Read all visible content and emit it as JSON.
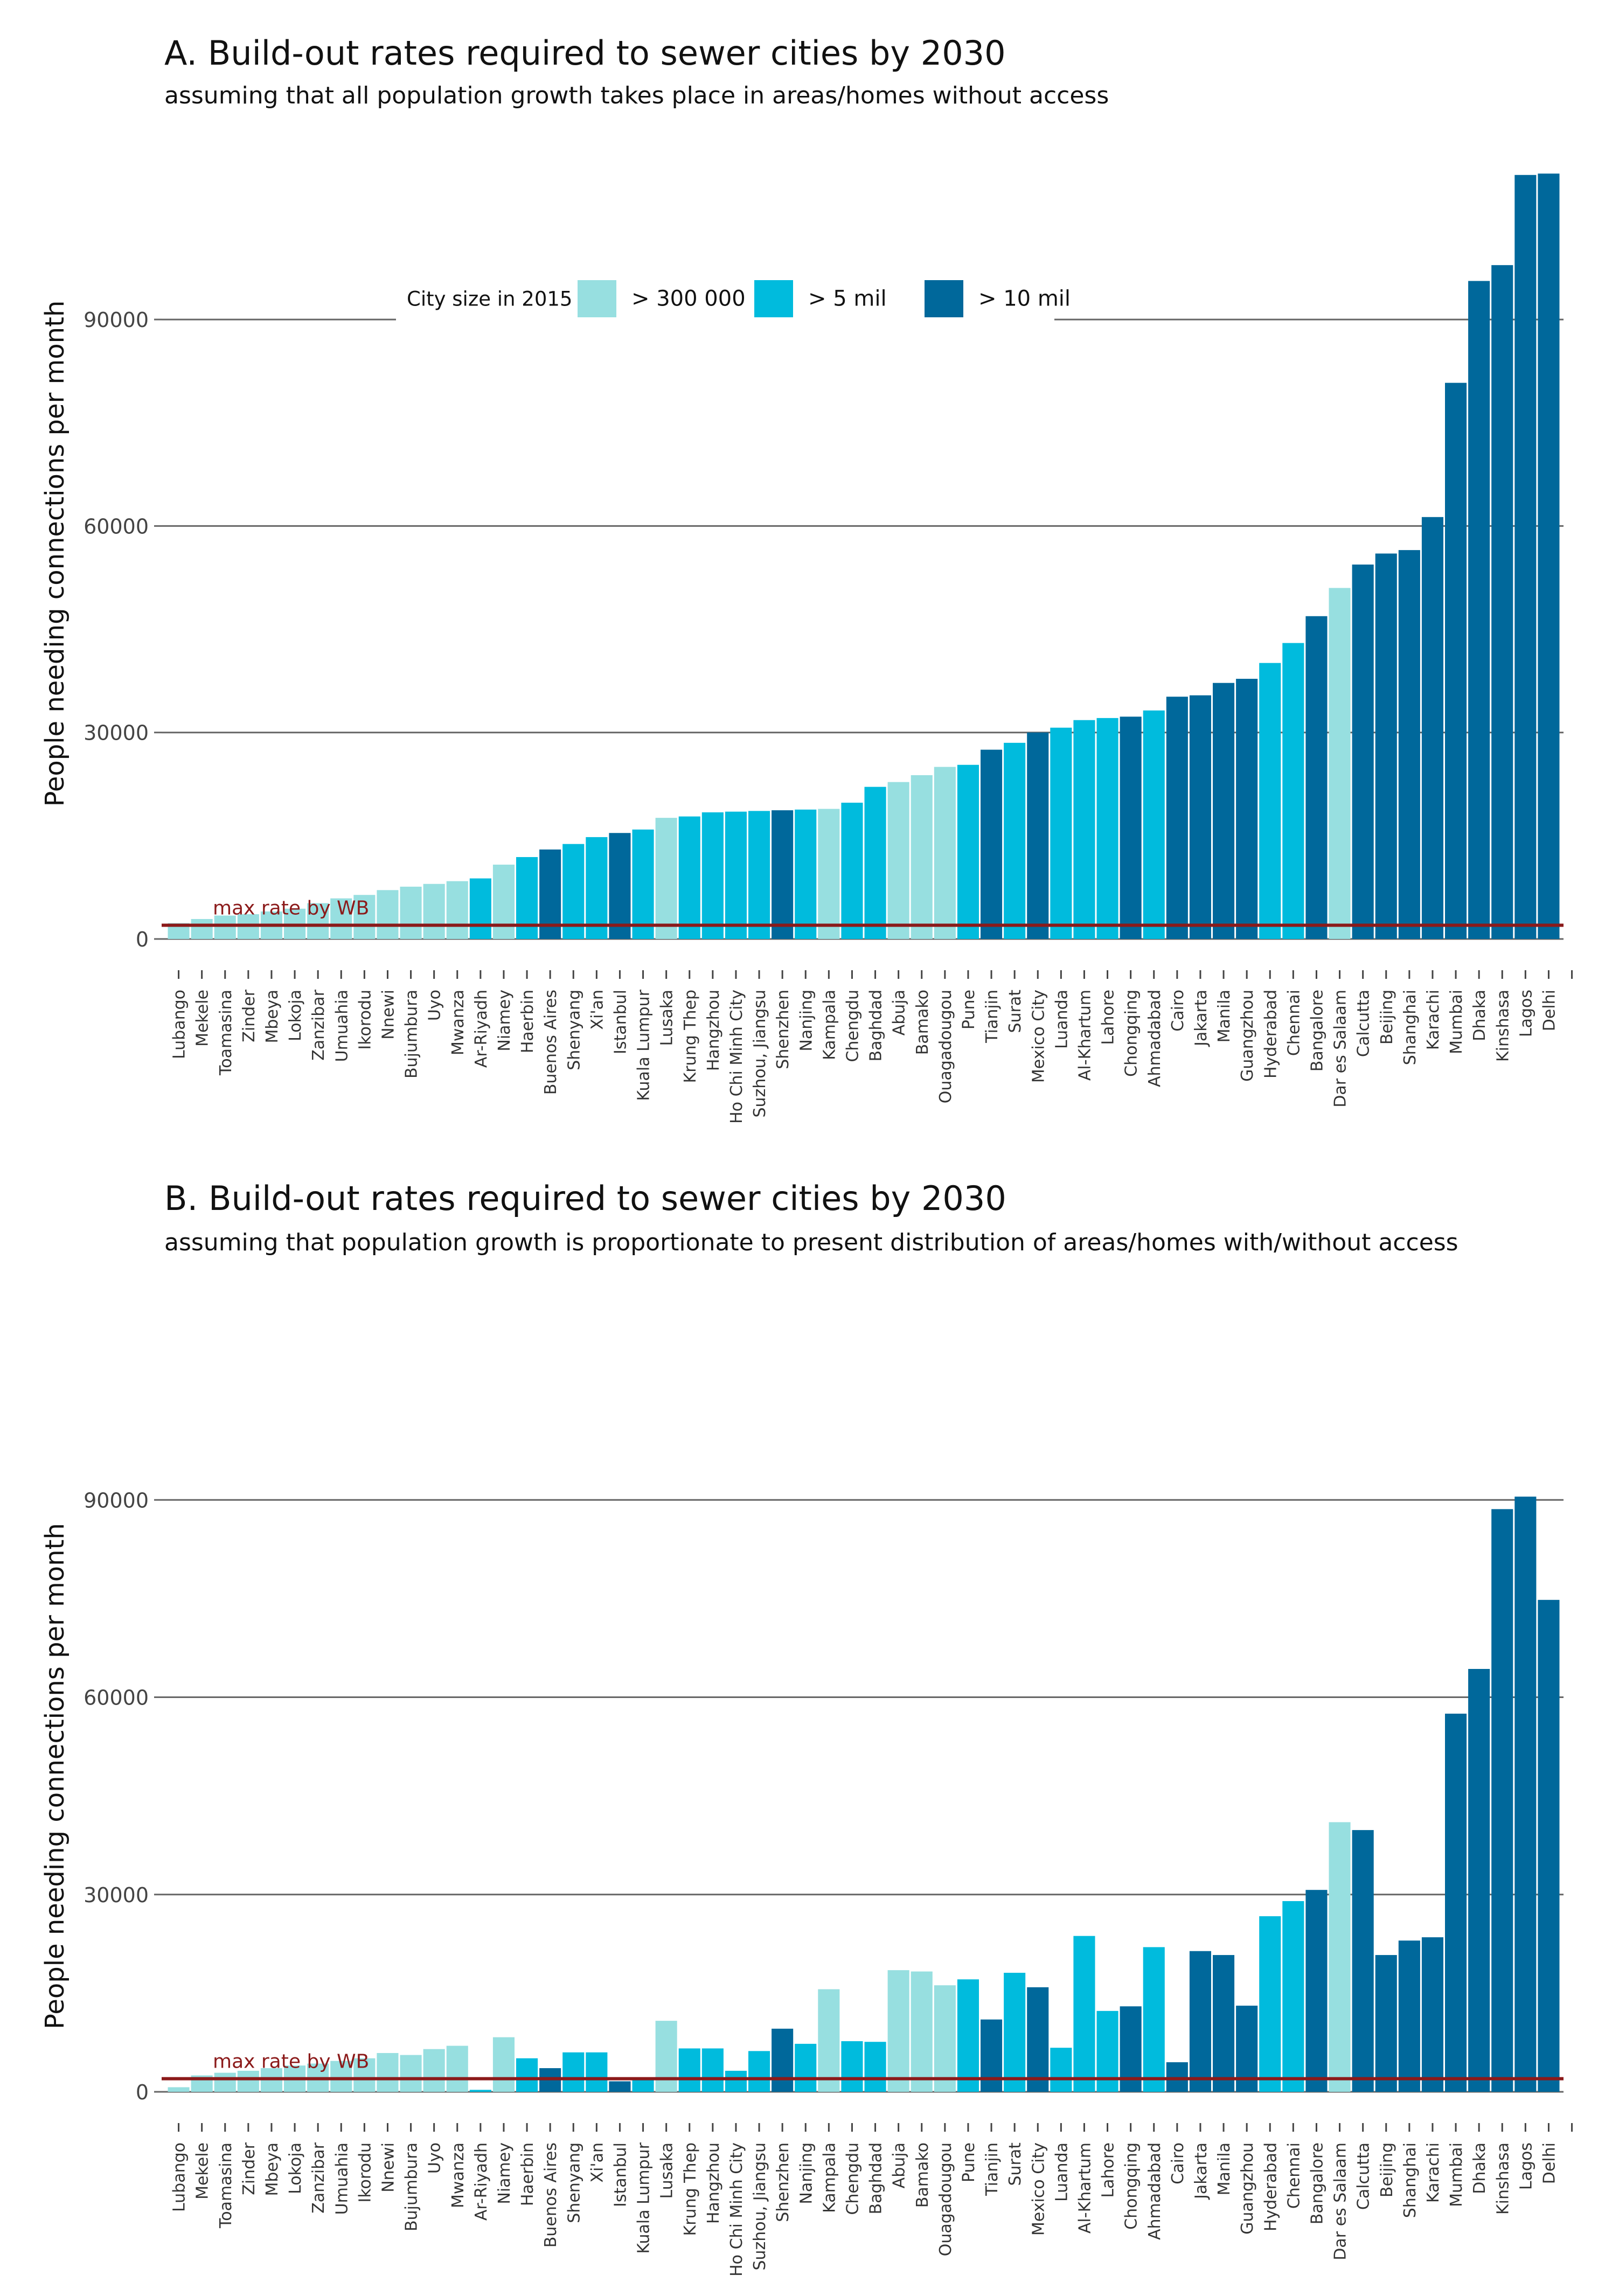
{
  "colors": {
    "size_300k": "#97dfe0",
    "size_5mil": "#00bbdd",
    "size_10mil": "#00689b",
    "wb_line": "#8b1a1a",
    "grid": "#666666"
  },
  "chart_data": [
    {
      "type": "bar",
      "title": "A. Build-out rates required to sewer cities by 2030",
      "subtitle": "assuming that all population growth takes place in areas/homes without access",
      "xlabel": "",
      "ylabel": "People needing connections per month",
      "ylim": [
        0,
        112000
      ],
      "yticks": [
        0,
        30000,
        60000,
        90000
      ],
      "grid": true,
      "legend": {
        "title": "City size in 2015",
        "entries": [
          "> 300 000",
          "> 5 mil",
          "> 10 mil"
        ],
        "placement": "top-center"
      },
      "reference_line": {
        "label": "max rate by WB",
        "value": 2000
      },
      "categories": [
        "Lubango",
        "Mekele",
        "Toamasina",
        "Zinder",
        "Mbeya",
        "Lokoja",
        "Zanzibar",
        "Umuahia",
        "Ikorodu",
        "Nnewi",
        "Bujumbura",
        "Uyo",
        "Mwanza",
        "Ar-Riyadh",
        "Niamey",
        "Haerbin",
        "Buenos Aires",
        "Shenyang",
        "Xi'an",
        "Istanbul",
        "Kuala Lumpur",
        "Lusaka",
        "Krung Thep",
        "Hangzhou",
        "Ho Chi Minh City",
        "Suzhou, Jiangsu",
        "Shenzhen",
        "Nanjing",
        "Kampala",
        "Chengdu",
        "Baghdad",
        "Abuja",
        "Bamako",
        "Ouagadougou",
        "Pune",
        "Tianjin",
        "Surat",
        "Mexico City",
        "Luanda",
        "Al-Khartum",
        "Lahore",
        "Chongqing",
        "Ahmadabad",
        "Cairo",
        "Jakarta",
        "Manila",
        "Guangzhou",
        "Hyderabad",
        "Chennai",
        "Bangalore",
        "Dar es Salaam",
        "Calcutta",
        "Beijing",
        "Shanghai",
        "Karachi",
        "Mumbai",
        "Dhaka",
        "Kinshasa",
        "Lagos",
        "Delhi"
      ],
      "city_size": [
        "> 300 000",
        "> 300 000",
        "> 300 000",
        "> 300 000",
        "> 300 000",
        "> 300 000",
        "> 300 000",
        "> 300 000",
        "> 300 000",
        "> 300 000",
        "> 300 000",
        "> 300 000",
        "> 300 000",
        "> 5 mil",
        "> 300 000",
        "> 5 mil",
        "> 10 mil",
        "> 5 mil",
        "> 5 mil",
        "> 10 mil",
        "> 5 mil",
        "> 300 000",
        "> 5 mil",
        "> 5 mil",
        "> 5 mil",
        "> 5 mil",
        "> 10 mil",
        "> 5 mil",
        "> 300 000",
        "> 5 mil",
        "> 5 mil",
        "> 300 000",
        "> 300 000",
        "> 300 000",
        "> 5 mil",
        "> 10 mil",
        "> 5 mil",
        "> 10 mil",
        "> 5 mil",
        "> 5 mil",
        "> 5 mil",
        "> 10 mil",
        "> 5 mil",
        "> 10 mil",
        "> 10 mil",
        "> 10 mil",
        "> 10 mil",
        "> 5 mil",
        "> 5 mil",
        "> 10 mil",
        "> 300 000",
        "> 10 mil",
        "> 10 mil",
        "> 10 mil",
        "> 10 mil",
        "> 10 mil",
        "> 10 mil",
        "> 10 mil",
        "> 10 mil",
        "> 10 mil"
      ],
      "values": [
        2300,
        2900,
        3400,
        3600,
        4000,
        4400,
        5200,
        5900,
        6400,
        7100,
        7600,
        8000,
        8400,
        8800,
        10800,
        11900,
        13000,
        13800,
        14800,
        15400,
        15900,
        17600,
        17800,
        18400,
        18500,
        18600,
        18700,
        18800,
        18900,
        19800,
        22100,
        22800,
        23800,
        25000,
        25300,
        27500,
        28500,
        30000,
        30700,
        31800,
        32100,
        32300,
        33200,
        35200,
        35400,
        37200,
        37800,
        40100,
        43000,
        46900,
        51000,
        54400,
        56000,
        56500,
        61300,
        80800,
        95600,
        97900,
        111000,
        111200
      ]
    },
    {
      "type": "bar",
      "title": "B. Build-out rates required to sewer cities by 2030",
      "subtitle": "assuming that population growth is proportionate to present distribution of areas/homes with/without access",
      "xlabel": "",
      "ylabel": "People needing connections per month",
      "ylim": [
        0,
        96000
      ],
      "yticks": [
        0,
        30000,
        60000,
        90000
      ],
      "grid": true,
      "reference_line": {
        "label": "max rate by WB",
        "value": 2000
      },
      "categories": [
        "Lubango",
        "Mekele",
        "Toamasina",
        "Zinder",
        "Mbeya",
        "Lokoja",
        "Zanzibar",
        "Umuahia",
        "Ikorodu",
        "Nnewi",
        "Bujumbura",
        "Uyo",
        "Mwanza",
        "Ar-Riyadh",
        "Niamey",
        "Haerbin",
        "Buenos Aires",
        "Shenyang",
        "Xi'an",
        "Istanbul",
        "Kuala Lumpur",
        "Lusaka",
        "Krung Thep",
        "Hangzhou",
        "Ho Chi Minh City",
        "Suzhou, Jiangsu",
        "Shenzhen",
        "Nanjing",
        "Kampala",
        "Chengdu",
        "Baghdad",
        "Abuja",
        "Bamako",
        "Ouagadougou",
        "Pune",
        "Tianjin",
        "Surat",
        "Mexico City",
        "Luanda",
        "Al-Khartum",
        "Lahore",
        "Chongqing",
        "Ahmadabad",
        "Cairo",
        "Jakarta",
        "Manila",
        "Guangzhou",
        "Hyderabad",
        "Chennai",
        "Bangalore",
        "Dar es Salaam",
        "Calcutta",
        "Beijing",
        "Shanghai",
        "Karachi",
        "Mumbai",
        "Dhaka",
        "Kinshasa",
        "Lagos",
        "Delhi"
      ],
      "city_size": [
        "> 300 000",
        "> 300 000",
        "> 300 000",
        "> 300 000",
        "> 300 000",
        "> 300 000",
        "> 300 000",
        "> 300 000",
        "> 300 000",
        "> 300 000",
        "> 300 000",
        "> 300 000",
        "> 300 000",
        "> 5 mil",
        "> 300 000",
        "> 5 mil",
        "> 10 mil",
        "> 5 mil",
        "> 5 mil",
        "> 10 mil",
        "> 5 mil",
        "> 300 000",
        "> 5 mil",
        "> 5 mil",
        "> 5 mil",
        "> 5 mil",
        "> 10 mil",
        "> 5 mil",
        "> 300 000",
        "> 5 mil",
        "> 5 mil",
        "> 300 000",
        "> 300 000",
        "> 300 000",
        "> 5 mil",
        "> 10 mil",
        "> 5 mil",
        "> 10 mil",
        "> 5 mil",
        "> 5 mil",
        "> 5 mil",
        "> 10 mil",
        "> 5 mil",
        "> 10 mil",
        "> 10 mil",
        "> 10 mil",
        "> 10 mil",
        "> 5 mil",
        "> 5 mil",
        "> 10 mil",
        "> 300 000",
        "> 10 mil",
        "> 10 mil",
        "> 10 mil",
        "> 10 mil",
        "> 10 mil",
        "> 10 mil",
        "> 10 mil",
        "> 10 mil",
        "> 10 mil"
      ],
      "values": [
        700,
        2500,
        2900,
        3200,
        3600,
        4000,
        4300,
        4700,
        5100,
        5900,
        5600,
        6500,
        7000,
        300,
        8300,
        5100,
        3600,
        6000,
        6000,
        1600,
        2000,
        10800,
        6600,
        6600,
        3200,
        6200,
        9600,
        7300,
        15600,
        7700,
        7600,
        18500,
        18300,
        16200,
        17100,
        11000,
        18100,
        15900,
        6700,
        23700,
        12300,
        13000,
        22000,
        4500,
        21400,
        20800,
        13100,
        26700,
        29000,
        30700,
        41000,
        39800,
        20800,
        23000,
        23500,
        57500,
        64300,
        88600,
        90500,
        74800
      ]
    }
  ]
}
